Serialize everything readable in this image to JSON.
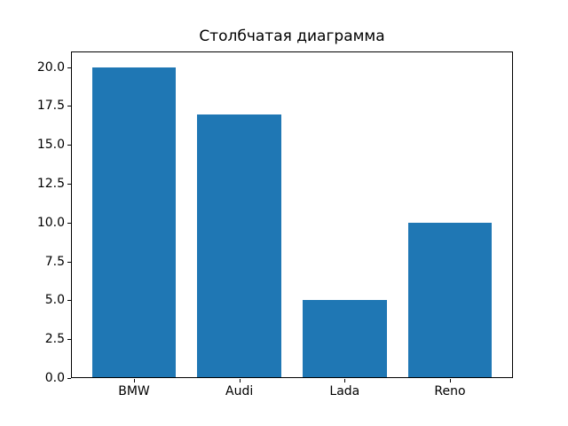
{
  "chart_data": {
    "type": "bar",
    "title": "Столбчатая диаграмма",
    "categories": [
      "BMW",
      "Audi",
      "Lada",
      "Reno"
    ],
    "values": [
      20,
      17,
      5,
      10
    ],
    "xlabel": "",
    "ylabel": "",
    "yticks": [
      0.0,
      2.5,
      5.0,
      7.5,
      10.0,
      12.5,
      15.0,
      17.5,
      20.0
    ],
    "ytick_labels": [
      "0.0",
      "2.5",
      "5.0",
      "7.5",
      "10.0",
      "12.5",
      "15.0",
      "17.5",
      "20.0"
    ],
    "ylim": [
      0,
      21
    ],
    "xlim": [
      -0.59,
      3.59
    ],
    "bar_width": 0.8,
    "bar_color": "#1f77b4",
    "text_color": "#000000",
    "spine_color": "#000000",
    "background_color": "#ffffff",
    "grid": false,
    "legend": null
  }
}
